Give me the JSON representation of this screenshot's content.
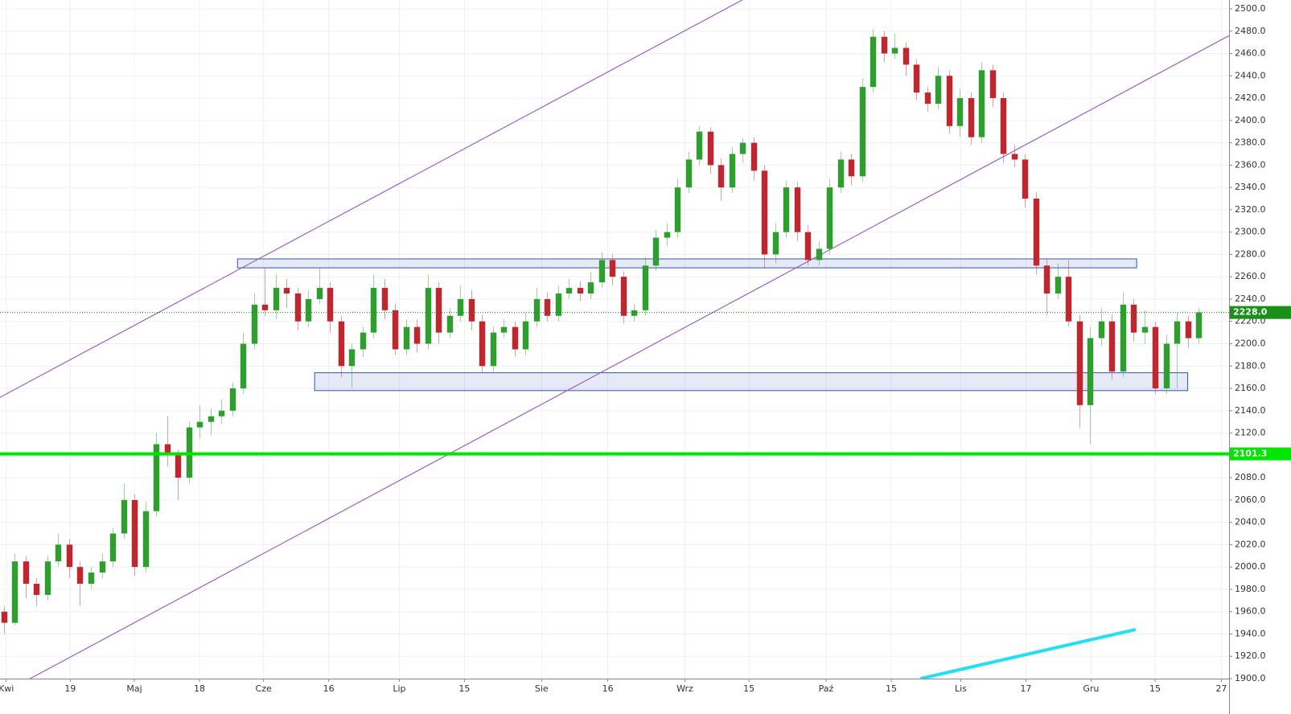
{
  "chart_data": {
    "type": "candlestick",
    "xlim": [
      -0.37,
      112.81
    ],
    "ylim": [
      1900,
      2507.92
    ],
    "grid": true,
    "up_color": "#2e9e2e",
    "down_color": "#c0262d",
    "xticks": [
      {
        "value": 0.2,
        "label": "Kwi"
      },
      {
        "value": 6.1,
        "label": "19"
      },
      {
        "value": 12,
        "label": "Maj"
      },
      {
        "value": 18,
        "label": "18"
      },
      {
        "value": 23.9,
        "label": "Cze"
      },
      {
        "value": 29.9,
        "label": "16"
      },
      {
        "value": 36.4,
        "label": "Lip"
      },
      {
        "value": 42.4,
        "label": "15"
      },
      {
        "value": 49.5,
        "label": "Sie"
      },
      {
        "value": 55.6,
        "label": "16"
      },
      {
        "value": 62.7,
        "label": "Wrz"
      },
      {
        "value": 68.6,
        "label": "15"
      },
      {
        "value": 75.7,
        "label": "Paź"
      },
      {
        "value": 81.7,
        "label": "15"
      },
      {
        "value": 88.1,
        "label": "Lis"
      },
      {
        "value": 94.1,
        "label": "17"
      },
      {
        "value": 100.1,
        "label": "Gru"
      },
      {
        "value": 106,
        "label": "15"
      },
      {
        "value": 112.1,
        "label": "27"
      }
    ],
    "yticks": [
      {
        "value": 1900,
        "label": "1900.0"
      },
      {
        "value": 1920,
        "label": "1920.0"
      },
      {
        "value": 1940,
        "label": "1940.0"
      },
      {
        "value": 1960,
        "label": "1960.0"
      },
      {
        "value": 1980,
        "label": "1980.0"
      },
      {
        "value": 2000,
        "label": "2000.0"
      },
      {
        "value": 2020,
        "label": "2020.0"
      },
      {
        "value": 2040,
        "label": "2040.0"
      },
      {
        "value": 2060,
        "label": "2060.0"
      },
      {
        "value": 2080,
        "label": "2080.0"
      },
      {
        "value": 2100,
        "label": "2100.0"
      },
      {
        "value": 2120,
        "label": "2120.0"
      },
      {
        "value": 2140,
        "label": "2140.0"
      },
      {
        "value": 2160,
        "label": "2160.0"
      },
      {
        "value": 2180,
        "label": "2180.0"
      },
      {
        "value": 2200,
        "label": "2200.0"
      },
      {
        "value": 2220,
        "label": "2220.0"
      },
      {
        "value": 2240,
        "label": "2240.0"
      },
      {
        "value": 2260,
        "label": "2260.0"
      },
      {
        "value": 2280,
        "label": "2280.0"
      },
      {
        "value": 2300,
        "label": "2300.0"
      },
      {
        "value": 2320,
        "label": "2320.0"
      },
      {
        "value": 2340,
        "label": "2340.0"
      },
      {
        "value": 2360,
        "label": "2360.0"
      },
      {
        "value": 2380,
        "label": "2380.0"
      },
      {
        "value": 2400,
        "label": "2400.0"
      },
      {
        "value": 2420,
        "label": "2420.0"
      },
      {
        "value": 2440,
        "label": "2440.0"
      },
      {
        "value": 2460,
        "label": "2460.0"
      },
      {
        "value": 2480,
        "label": "2480.0"
      },
      {
        "value": 2500,
        "label": "2500.0"
      }
    ],
    "levels": [
      {
        "value": 2101.3,
        "label": "2101.3",
        "color": "#00e600",
        "style": "solid"
      },
      {
        "value": 2228,
        "label": "2228.0",
        "color": "#1a8f1a",
        "style": "dotted"
      }
    ],
    "rectangles": [
      {
        "x": [
          21.5,
          104.3
        ],
        "y": [
          2268,
          2276
        ],
        "color": "#3355bb"
      },
      {
        "x": [
          28.6,
          109
        ],
        "y": [
          2158,
          2174
        ],
        "color": "#3355bb"
      }
    ],
    "trend_lines": [
      {
        "x": [
          -0.37,
          68
        ],
        "y": [
          2152,
          2508
        ],
        "color": "#9c5fc4"
      },
      {
        "x": [
          2.4,
          112.81
        ],
        "y": [
          1900,
          2476
        ],
        "color": "#9c5fc4"
      },
      {
        "x": [
          84.4,
          104.2
        ],
        "y": [
          1900,
          1944
        ],
        "color": "#22e0f0"
      }
    ],
    "candles": [
      [
        1960,
        1965,
        1940,
        1950
      ],
      [
        1950,
        2012,
        1948,
        2005
      ],
      [
        2005,
        2010,
        1972,
        1985
      ],
      [
        1985,
        1990,
        1965,
        1975
      ],
      [
        1975,
        2010,
        1970,
        2005
      ],
      [
        2005,
        2030,
        2000,
        2020
      ],
      [
        2020,
        2025,
        1990,
        2000
      ],
      [
        2000,
        2005,
        1965,
        1985
      ],
      [
        1985,
        2000,
        1980,
        1995
      ],
      [
        1995,
        2012,
        1990,
        2005
      ],
      [
        2005,
        2035,
        2000,
        2030
      ],
      [
        2030,
        2075,
        2025,
        2060
      ],
      [
        2060,
        2065,
        1992,
        2000
      ],
      [
        2000,
        2058,
        1995,
        2050
      ],
      [
        2050,
        2120,
        2045,
        2110
      ],
      [
        2110,
        2135,
        2090,
        2100
      ],
      [
        2100,
        2105,
        2060,
        2080
      ],
      [
        2080,
        2130,
        2075,
        2125
      ],
      [
        2125,
        2145,
        2115,
        2130
      ],
      [
        2130,
        2142,
        2118,
        2135
      ],
      [
        2135,
        2150,
        2128,
        2140
      ],
      [
        2140,
        2165,
        2135,
        2160
      ],
      [
        2160,
        2210,
        2155,
        2200
      ],
      [
        2200,
        2245,
        2195,
        2235
      ],
      [
        2235,
        2268,
        2225,
        2230
      ],
      [
        2230,
        2262,
        2222,
        2250
      ],
      [
        2250,
        2258,
        2232,
        2245
      ],
      [
        2245,
        2250,
        2212,
        2220
      ],
      [
        2220,
        2248,
        2215,
        2240
      ],
      [
        2240,
        2268,
        2235,
        2250
      ],
      [
        2250,
        2255,
        2210,
        2220
      ],
      [
        2220,
        2225,
        2170,
        2180
      ],
      [
        2180,
        2200,
        2160,
        2195
      ],
      [
        2195,
        2215,
        2188,
        2210
      ],
      [
        2210,
        2262,
        2205,
        2250
      ],
      [
        2250,
        2258,
        2222,
        2230
      ],
      [
        2230,
        2236,
        2190,
        2195
      ],
      [
        2195,
        2222,
        2190,
        2215
      ],
      [
        2215,
        2222,
        2192,
        2200
      ],
      [
        2200,
        2262,
        2195,
        2250
      ],
      [
        2250,
        2255,
        2200,
        2210
      ],
      [
        2210,
        2232,
        2205,
        2225
      ],
      [
        2225,
        2252,
        2220,
        2240
      ],
      [
        2240,
        2248,
        2212,
        2220
      ],
      [
        2220,
        2226,
        2174,
        2180
      ],
      [
        2180,
        2215,
        2175,
        2210
      ],
      [
        2210,
        2222,
        2205,
        2215
      ],
      [
        2215,
        2220,
        2188,
        2195
      ],
      [
        2195,
        2228,
        2190,
        2220
      ],
      [
        2220,
        2250,
        2215,
        2240
      ],
      [
        2240,
        2246,
        2220,
        2225
      ],
      [
        2225,
        2252,
        2220,
        2245
      ],
      [
        2245,
        2258,
        2240,
        2250
      ],
      [
        2250,
        2256,
        2238,
        2245
      ],
      [
        2245,
        2264,
        2240,
        2255
      ],
      [
        2255,
        2282,
        2250,
        2275
      ],
      [
        2275,
        2280,
        2252,
        2260
      ],
      [
        2260,
        2265,
        2218,
        2225
      ],
      [
        2225,
        2236,
        2220,
        2230
      ],
      [
        2230,
        2278,
        2225,
        2270
      ],
      [
        2270,
        2302,
        2265,
        2295
      ],
      [
        2295,
        2308,
        2288,
        2300
      ],
      [
        2300,
        2348,
        2295,
        2340
      ],
      [
        2340,
        2372,
        2335,
        2365
      ],
      [
        2365,
        2395,
        2360,
        2390
      ],
      [
        2390,
        2394,
        2352,
        2360
      ],
      [
        2360,
        2366,
        2328,
        2340
      ],
      [
        2340,
        2376,
        2335,
        2370
      ],
      [
        2370,
        2384,
        2362,
        2380
      ],
      [
        2380,
        2385,
        2346,
        2355
      ],
      [
        2355,
        2360,
        2268,
        2280
      ],
      [
        2280,
        2308,
        2272,
        2300
      ],
      [
        2300,
        2346,
        2295,
        2340
      ],
      [
        2340,
        2345,
        2292,
        2300
      ],
      [
        2300,
        2306,
        2270,
        2275
      ],
      [
        2275,
        2292,
        2270,
        2285
      ],
      [
        2285,
        2348,
        2280,
        2340
      ],
      [
        2340,
        2372,
        2335,
        2365
      ],
      [
        2365,
        2370,
        2342,
        2350
      ],
      [
        2350,
        2438,
        2345,
        2430
      ],
      [
        2430,
        2482,
        2425,
        2475
      ],
      [
        2475,
        2480,
        2452,
        2460
      ],
      [
        2460,
        2478,
        2455,
        2465
      ],
      [
        2465,
        2470,
        2440,
        2450
      ],
      [
        2450,
        2455,
        2418,
        2425
      ],
      [
        2425,
        2430,
        2408,
        2415
      ],
      [
        2415,
        2448,
        2410,
        2440
      ],
      [
        2440,
        2445,
        2388,
        2395
      ],
      [
        2395,
        2428,
        2385,
        2420
      ],
      [
        2420,
        2425,
        2378,
        2385
      ],
      [
        2385,
        2452,
        2380,
        2445
      ],
      [
        2445,
        2450,
        2412,
        2420
      ],
      [
        2420,
        2425,
        2362,
        2370
      ],
      [
        2370,
        2378,
        2358,
        2365
      ],
      [
        2365,
        2370,
        2322,
        2330
      ],
      [
        2330,
        2336,
        2262,
        2270
      ],
      [
        2270,
        2276,
        2225,
        2245
      ],
      [
        2245,
        2272,
        2240,
        2260
      ],
      [
        2260,
        2275,
        2215,
        2220
      ],
      [
        2220,
        2226,
        2125,
        2145
      ],
      [
        2145,
        2215,
        2110,
        2205
      ],
      [
        2205,
        2232,
        2198,
        2220
      ],
      [
        2220,
        2226,
        2168,
        2175
      ],
      [
        2175,
        2246,
        2170,
        2235
      ],
      [
        2235,
        2240,
        2202,
        2210
      ],
      [
        2210,
        2230,
        2200,
        2215
      ],
      [
        2215,
        2220,
        2155,
        2160
      ],
      [
        2160,
        2208,
        2155,
        2200
      ],
      [
        2200,
        2228,
        2160,
        2220
      ],
      [
        2220,
        2225,
        2196,
        2205
      ],
      [
        2205,
        2232,
        2200,
        2228
      ]
    ]
  }
}
